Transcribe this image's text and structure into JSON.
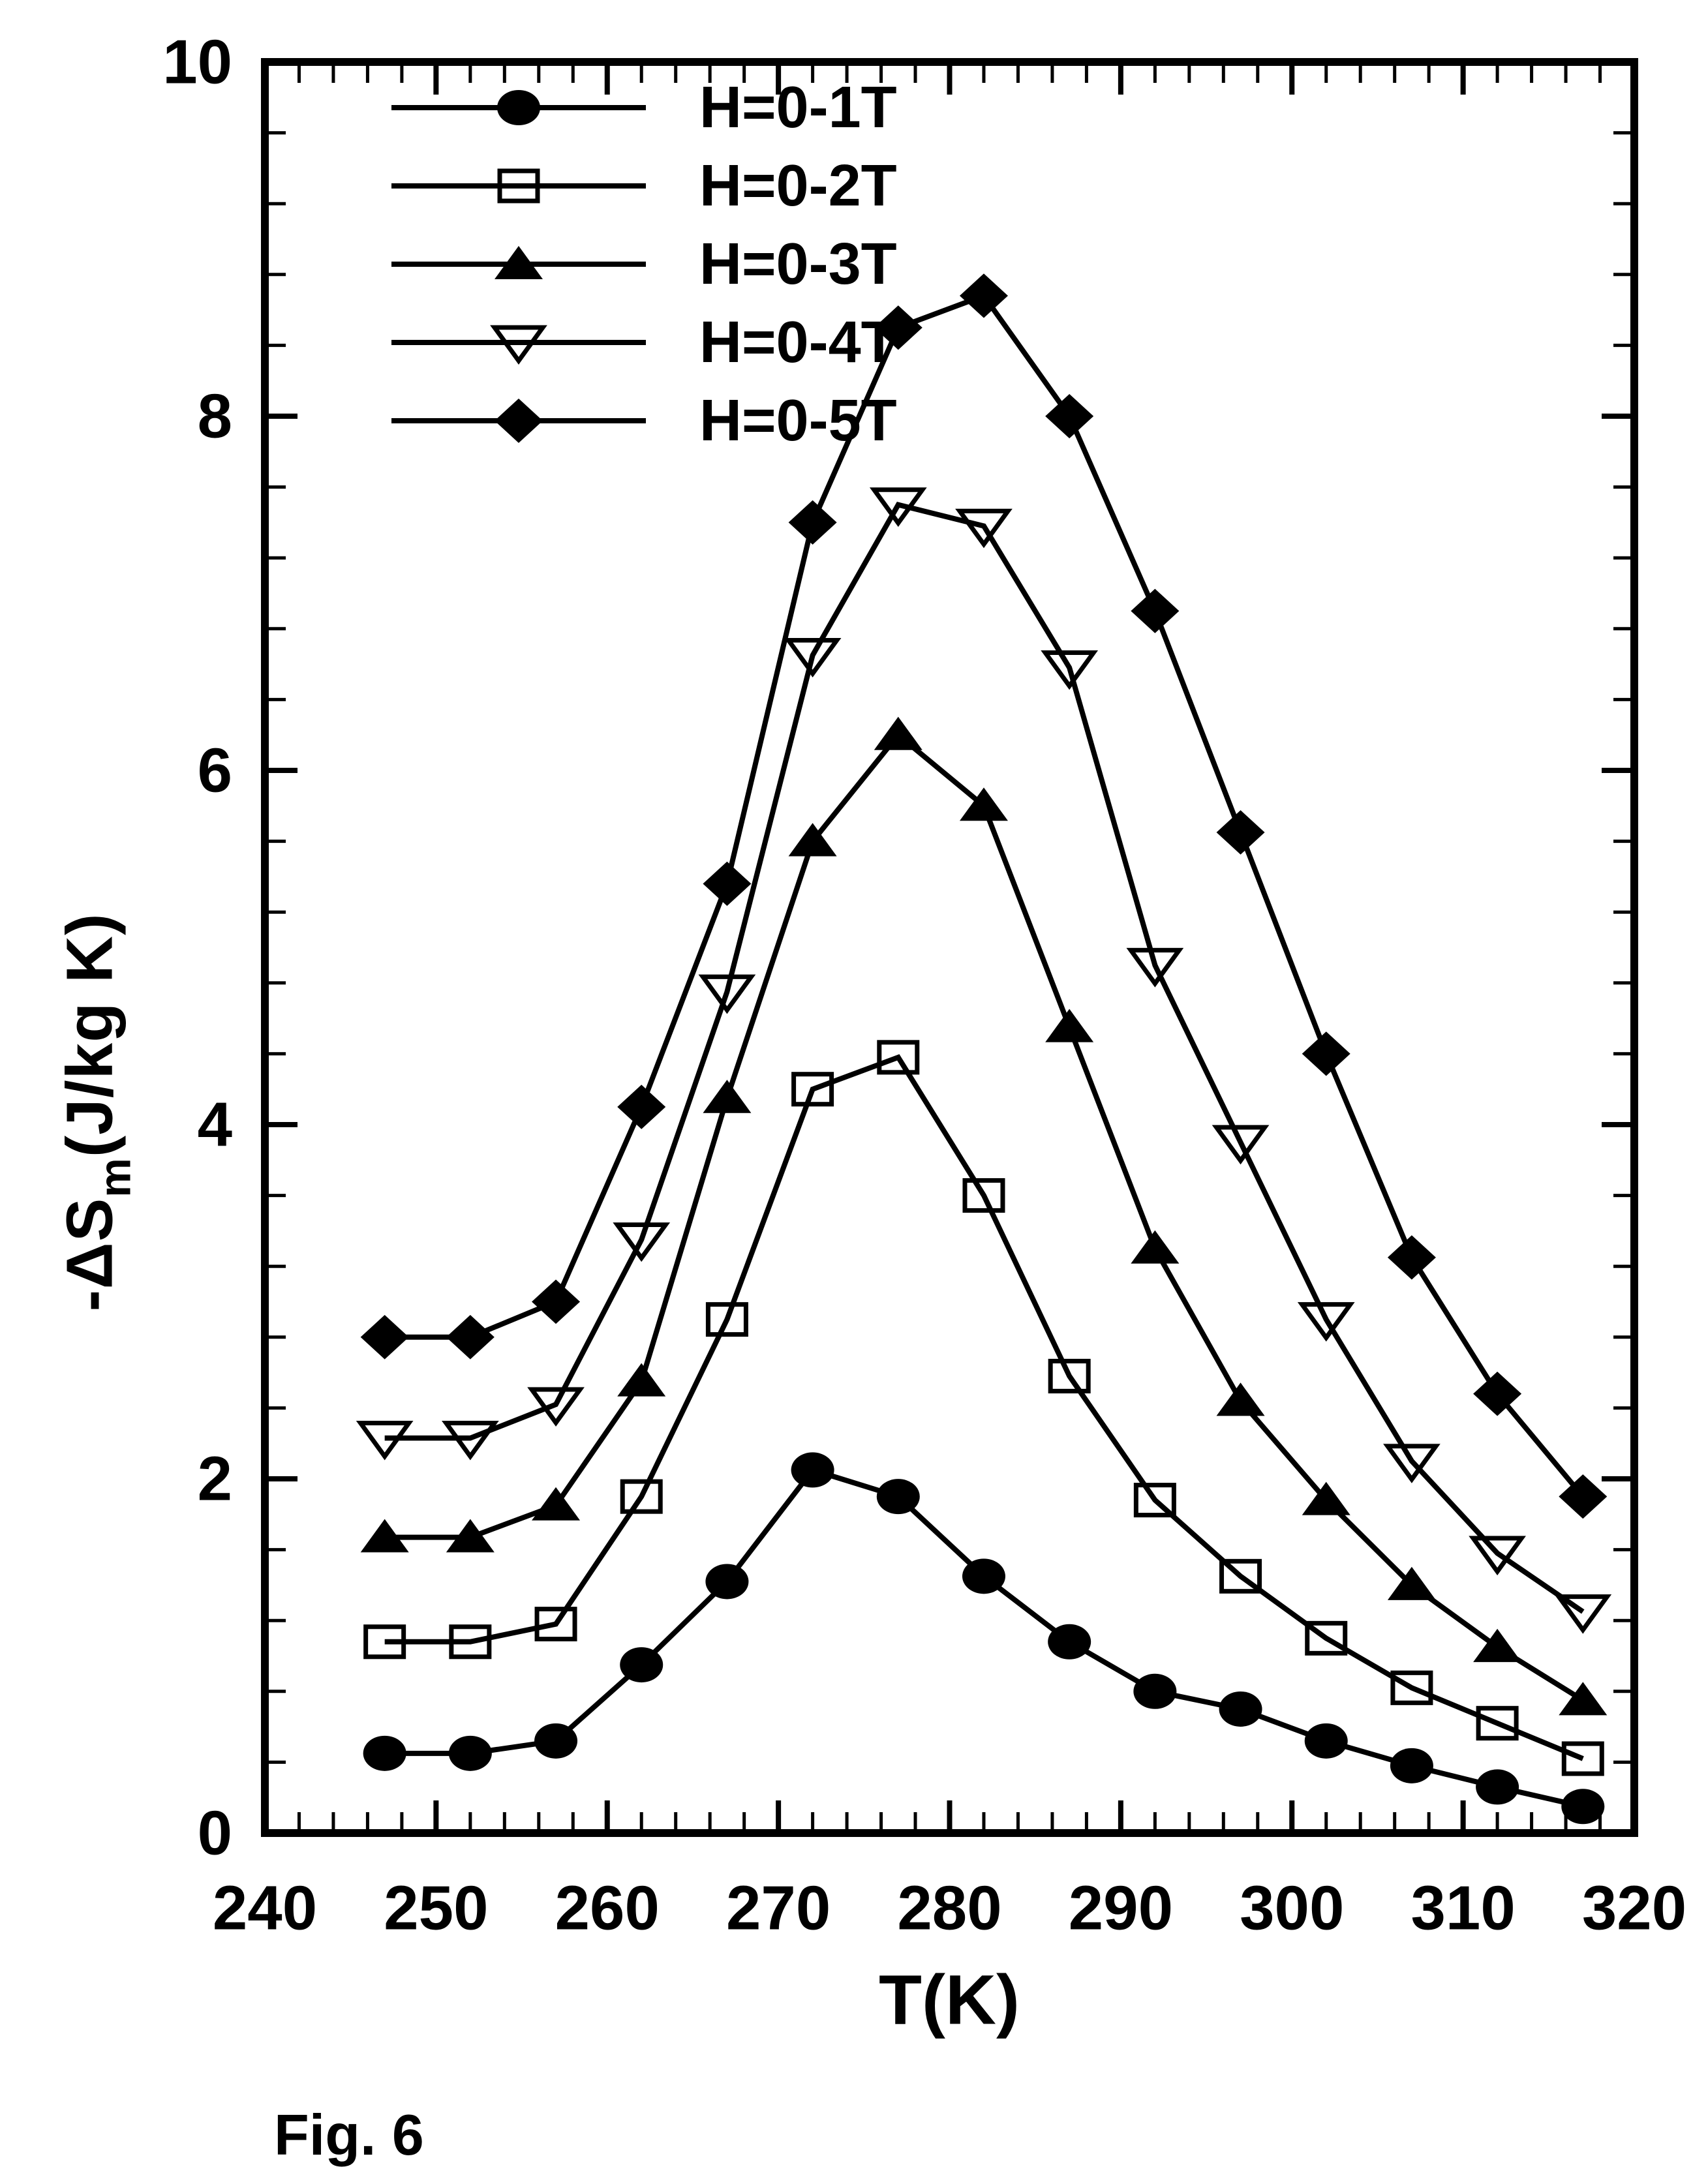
{
  "figure": {
    "caption": "Fig. 6"
  },
  "chart_data": {
    "type": "line",
    "title": "",
    "xlabel": "T(K)",
    "ylabel": {
      "prefix": "-ΔS",
      "sub": "m",
      "suffix": "(J/kg K)"
    },
    "xlim": [
      240,
      320
    ],
    "ylim": [
      0,
      10
    ],
    "x_major_ticks": [
      240,
      250,
      260,
      270,
      280,
      290,
      300,
      310,
      320
    ],
    "x_minor_step": 2,
    "y_major_ticks": [
      0,
      2,
      4,
      6,
      8,
      10
    ],
    "y_minor_step": 0.4,
    "grid": false,
    "legend_position": "top-left",
    "background": "#ffffff",
    "foreground": "#000000",
    "x": [
      247,
      252,
      257,
      262,
      267,
      272,
      277,
      282,
      287,
      292,
      297,
      302,
      307,
      312,
      317
    ],
    "series": [
      {
        "name": "H=0-1T",
        "marker": "circle-filled",
        "values": [
          0.45,
          0.45,
          0.52,
          0.95,
          1.42,
          2.05,
          1.9,
          1.45,
          1.08,
          0.8,
          0.7,
          0.52,
          0.38,
          0.26,
          0.15
        ]
      },
      {
        "name": "H=0-2T",
        "marker": "square-open",
        "values": [
          1.08,
          1.08,
          1.18,
          1.9,
          2.9,
          4.2,
          4.38,
          3.6,
          2.58,
          1.88,
          1.45,
          1.1,
          0.82,
          0.62,
          0.42
        ]
      },
      {
        "name": "H=0-3T",
        "marker": "triangle-up-filled",
        "values": [
          1.67,
          1.67,
          1.85,
          2.55,
          4.15,
          5.6,
          6.2,
          5.8,
          4.55,
          3.3,
          2.44,
          1.88,
          1.4,
          1.05,
          0.75
        ]
      },
      {
        "name": "H=0-4T",
        "marker": "triangle-down-open",
        "values": [
          2.23,
          2.23,
          2.42,
          3.35,
          4.75,
          6.65,
          7.5,
          7.38,
          6.58,
          4.9,
          3.9,
          2.9,
          2.1,
          1.58,
          1.25
        ]
      },
      {
        "name": "H=0-5T",
        "marker": "diamond-filled",
        "values": [
          2.8,
          2.8,
          3.0,
          4.1,
          5.36,
          7.4,
          8.5,
          8.68,
          8.0,
          6.9,
          5.65,
          4.4,
          3.25,
          2.48,
          1.9
        ]
      }
    ]
  }
}
